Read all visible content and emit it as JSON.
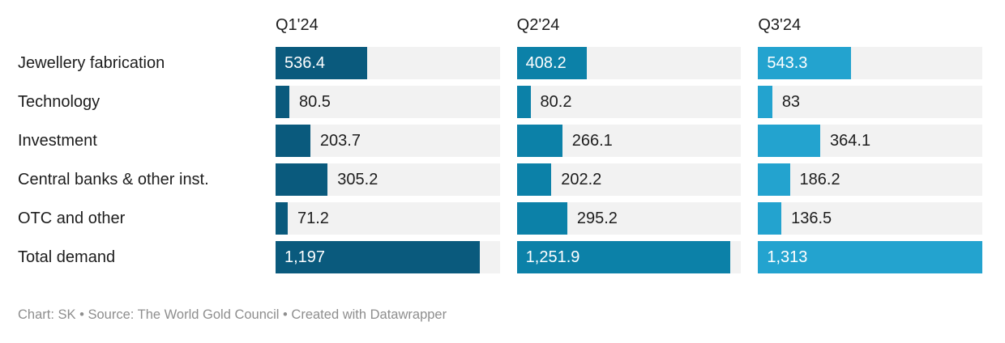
{
  "chart_data": {
    "type": "bar",
    "orientation": "horizontal",
    "layout": "small-multiples-3-columns",
    "grid": false,
    "categories": [
      "Jewellery fabrication",
      "Technology",
      "Investment",
      "Central banks & other inst.",
      "OTC and other",
      "Total demand"
    ],
    "series": [
      {
        "name": "Q1'24",
        "color": "#0a5a7d",
        "values": [
          536.4,
          80.5,
          203.7,
          305.2,
          71.2,
          1197
        ],
        "labels": [
          "536.4",
          "80.5",
          "203.7",
          "305.2",
          "71.2",
          "1,197"
        ]
      },
      {
        "name": "Q2'24",
        "color": "#0c81a8",
        "values": [
          408.2,
          80.2,
          266.1,
          202.2,
          295.2,
          1251.9
        ],
        "labels": [
          "408.2",
          "80.2",
          "266.1",
          "202.2",
          "295.2",
          "1,251.9"
        ]
      },
      {
        "name": "Q3'24",
        "color": "#23a3cf",
        "values": [
          543.3,
          83,
          364.1,
          186.2,
          136.5,
          1313
        ],
        "labels": [
          "543.3",
          "83",
          "364.1",
          "186.2",
          "136.5",
          "1,313"
        ]
      }
    ],
    "xlim": [
      0,
      1313
    ],
    "xmax": 1313,
    "label_inside_threshold": 390,
    "track_color": "#f2f2f2",
    "value_inside_color": "#ffffff",
    "value_outside_color": "#1d1d1d",
    "footer": "Chart: SK • Source: The World Gold Council • Created with Datawrapper"
  }
}
